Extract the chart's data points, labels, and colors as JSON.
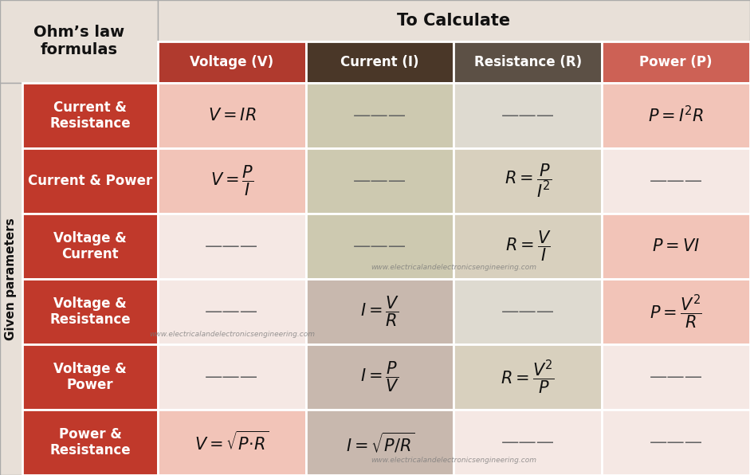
{
  "title": "Ohm’s law\nformulas",
  "to_calculate": "To Calculate",
  "given_parameters": "Given parameters",
  "website": "www.electricalandelectronicsengineering.com",
  "col_headers": [
    "Voltage (V)",
    "Current (I)",
    "Resistance (R)",
    "Power (P)"
  ],
  "col_header_colors": [
    "#b03a2e",
    "#4a3728",
    "#5c5045",
    "#cd6155"
  ],
  "row_labels": [
    "Current &\nResistance",
    "Current & Power",
    "Voltage &\nCurrent",
    "Voltage &\nResistance",
    "Voltage &\nPower",
    "Power &\nResistance"
  ],
  "row_label_color": "#c0392b",
  "cell_colors": {
    "voltage": [
      "#f2c4b8",
      "#f2c4b8",
      "#f5e8e4",
      "#f5e8e4",
      "#f5e8e4",
      "#f2c4b8"
    ],
    "current": [
      "#cdc9b0",
      "#cdc9b0",
      "#cdc9b0",
      "#c8b8ae",
      "#c8b8ae",
      "#c8b8ae"
    ],
    "resistance": [
      "#dedad0",
      "#d8d0be",
      "#d8d0be",
      "#dedad0",
      "#d8d0be",
      "#f5e8e4"
    ],
    "power": [
      "#f2c4b8",
      "#f5e8e4",
      "#f2c4b8",
      "#f2c4b8",
      "#f5e8e4",
      "#f5e8e4"
    ]
  },
  "formulas": {
    "voltage": [
      "$V = IR$",
      "$V = \\dfrac{P}{I}$",
      "---",
      "---",
      "---",
      "$V = \\sqrt{P{\\cdot}R}$"
    ],
    "current": [
      "---",
      "---",
      "---",
      "$I = \\dfrac{V}{R}$",
      "$I = \\dfrac{P}{V}$",
      "$I = \\sqrt{P/R}$"
    ],
    "resistance": [
      "---",
      "$R = \\dfrac{P}{I^2}$",
      "$R = \\dfrac{V}{I}$",
      "---",
      "$R = \\dfrac{V^2}{P}$",
      "---"
    ],
    "power": [
      "$P = I^2R$",
      "---",
      "$P = VI$",
      "$P = \\dfrac{V^2}{R}$",
      "---",
      "---"
    ]
  },
  "header_bg": "#e8e0d8",
  "border_color": "#ffffff",
  "top_header_bg": "#e8e0d8",
  "fig_w": 9.41,
  "fig_h": 5.96,
  "dpi": 100
}
